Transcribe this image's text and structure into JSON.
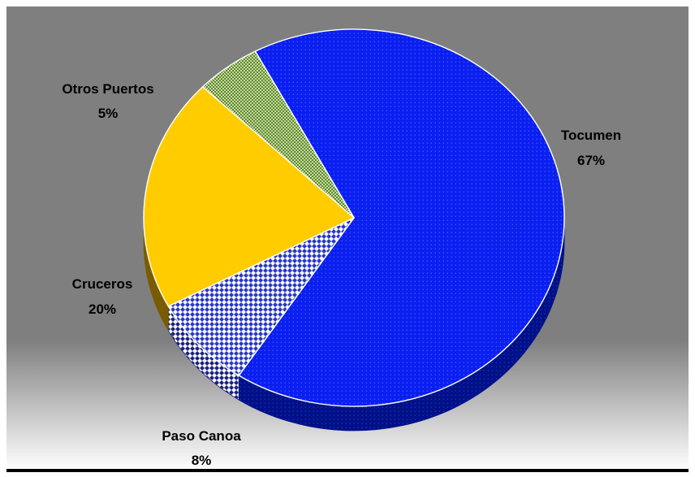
{
  "colors": {
    "background_top": "#7f7f7f",
    "background_bottom": "#ffffff",
    "frame_border": "#000000",
    "slice_outline": "#ffffff"
  },
  "chart_data": {
    "type": "pie",
    "style": "3d",
    "title": "",
    "legend": "none",
    "slices": [
      {
        "name": "Tocumen",
        "value": 67,
        "value_label": "67%",
        "color": "#0a1ff0",
        "side_color": "#00108a",
        "pattern": "dots"
      },
      {
        "name": "Paso Canoa",
        "value": 8,
        "value_label": "8%",
        "color": "#2838c8",
        "side_color": "#1a2280",
        "pattern": "checker"
      },
      {
        "name": "Cruceros",
        "value": 20,
        "value_label": "20%",
        "color": "#ffcc00",
        "side_color": "#7a5c00",
        "pattern": "solid"
      },
      {
        "name": "Otros Puertos",
        "value": 5,
        "value_label": "5%",
        "color": "#6f9a3a",
        "side_color": "#4a6a25",
        "pattern": "grid"
      }
    ]
  }
}
